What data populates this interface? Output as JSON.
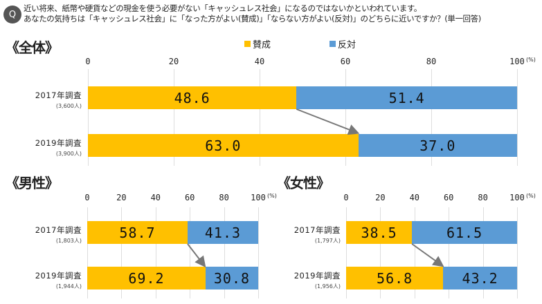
{
  "question": {
    "badge": "Q",
    "line1": "近い将来、紙幣や硬貨などの現金を使う必要がない「キャッシュレス社会」になるのではないかといわれています。",
    "line2": "あなたの気持ちは「キャッシュレス社会」に「なった方がよい(賛成)」「ならない方がよい(反対)」のどちらに近いですか？(単一回答)"
  },
  "legend": [
    {
      "label": "賛成",
      "color": "#FFC000"
    },
    {
      "label": "反対",
      "color": "#5B9BD5"
    }
  ],
  "chart_data": [
    {
      "type": "bar",
      "stacked": true,
      "orientation": "horizontal",
      "title": "《全体》",
      "xlim": [
        0,
        100
      ],
      "ticks": [
        "0",
        "20",
        "40",
        "60",
        "80",
        "100"
      ],
      "unit": "(%)",
      "rows": [
        {
          "label": "2017年調査",
          "n": "(3,600人)",
          "values": [
            "48.6",
            "51.4"
          ]
        },
        {
          "label": "2019年調査",
          "n": "(3,900人)",
          "values": [
            "63.0",
            "37.0"
          ]
        }
      ]
    },
    {
      "type": "bar",
      "stacked": true,
      "orientation": "horizontal",
      "title": "《男性》",
      "xlim": [
        0,
        100
      ],
      "ticks": [
        "0",
        "20",
        "40",
        "60",
        "80",
        "100"
      ],
      "unit": "(%)",
      "rows": [
        {
          "label": "2017年調査",
          "n": "(1,803人)",
          "values": [
            "58.7",
            "41.3"
          ]
        },
        {
          "label": "2019年調査",
          "n": "(1,944人)",
          "values": [
            "69.2",
            "30.8"
          ]
        }
      ]
    },
    {
      "type": "bar",
      "stacked": true,
      "orientation": "horizontal",
      "title": "《女性》",
      "xlim": [
        0,
        100
      ],
      "ticks": [
        "0",
        "20",
        "40",
        "60",
        "80",
        "100"
      ],
      "unit": "(%)",
      "rows": [
        {
          "label": "2017年調査",
          "n": "(1,797人)",
          "values": [
            "38.5",
            "61.5"
          ]
        },
        {
          "label": "2019年調査",
          "n": "(1,956人)",
          "values": [
            "56.8",
            "43.2"
          ]
        }
      ]
    }
  ]
}
